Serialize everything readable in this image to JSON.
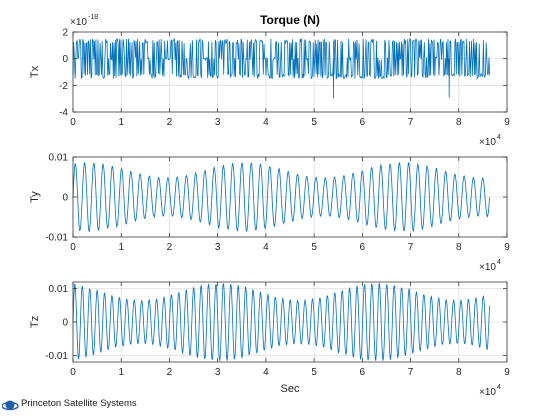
{
  "chart_data": [
    {
      "type": "line",
      "title": "Torque (N)",
      "xlabel": "",
      "ylabel": "Tx",
      "xlim": [
        0,
        90000
      ],
      "ylim": [
        -4e-18,
        2e-18
      ],
      "x_ticks": [
        "0",
        "1",
        "2",
        "3",
        "4",
        "5",
        "6",
        "7",
        "8",
        "9"
      ],
      "y_ticks": [
        "-4",
        "-2",
        "0",
        "2"
      ],
      "y_tick_values": [
        -4e-18,
        -2e-18,
        0,
        2e-18
      ],
      "x_multiplier": {
        "base": "×10",
        "exp": "4"
      },
      "y_multiplier": {
        "base": "×10",
        "exp": "-18"
      },
      "grid": true,
      "series": [
        {
          "color": "#0072BD",
          "signal": "spiky",
          "x_range": [
            0,
            86400
          ],
          "samples": 600,
          "spike_high": 1.5e-18,
          "spike_low": -1.5e-18,
          "outliers": [
            {
              "x": 54000,
              "y": -3e-18
            },
            {
              "x": 78000,
              "y": -2.9e-18
            }
          ]
        }
      ]
    },
    {
      "type": "line",
      "title": "",
      "xlabel": "",
      "ylabel": "Ty",
      "xlim": [
        0,
        90000
      ],
      "ylim": [
        -0.01,
        0.01
      ],
      "x_ticks": [
        "0",
        "1",
        "2",
        "3",
        "4",
        "5",
        "6",
        "7",
        "8",
        "9"
      ],
      "y_ticks": [
        "-0.01",
        "0",
        "0.01"
      ],
      "y_tick_values": [
        -0.01,
        0,
        0.01
      ],
      "x_multiplier": {
        "base": "×10",
        "exp": "4"
      },
      "grid": true,
      "series": [
        {
          "color": "#0072BD",
          "signal": "oscillation",
          "x_range": [
            0,
            86400
          ],
          "amplitude": 0.0085,
          "period": 1920,
          "samples": 1600
        }
      ]
    },
    {
      "type": "line",
      "title": "",
      "xlabel": "Sec",
      "ylabel": "Tz",
      "xlim": [
        0,
        90000
      ],
      "ylim": [
        -0.012,
        0.012
      ],
      "x_ticks": [
        "0",
        "1",
        "2",
        "3",
        "4",
        "5",
        "6",
        "7",
        "8",
        "9"
      ],
      "y_ticks": [
        "-0.01",
        "0",
        "0.01"
      ],
      "y_tick_values": [
        -0.01,
        0,
        0.01
      ],
      "x_multiplier": {
        "base": "×10",
        "exp": "4"
      },
      "grid": true,
      "series": [
        {
          "color": "#0072BD",
          "signal": "oscillation",
          "x_range": [
            0,
            86400
          ],
          "amplitude": 0.0115,
          "period": 1540,
          "samples": 1800
        }
      ]
    }
  ],
  "footer": {
    "logo_text": "Princeton Satellite Systems",
    "logo_icon": "planet-orbit-icon",
    "logo_color": "#1f5fa8"
  }
}
